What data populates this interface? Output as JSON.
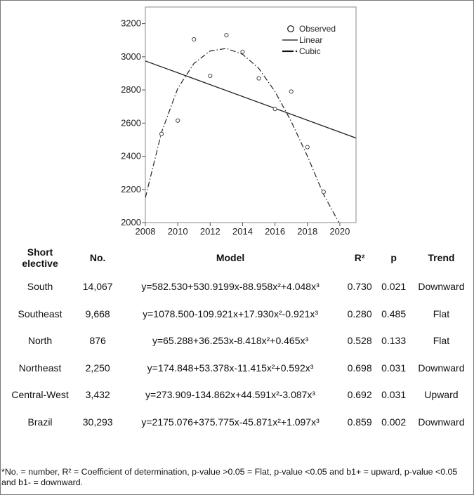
{
  "chart_data": {
    "type": "scatter",
    "title": "",
    "xlabel": "",
    "ylabel": "",
    "xlim": [
      2008,
      2021
    ],
    "ylim": [
      2000,
      3300
    ],
    "xticks": [
      2008,
      2010,
      2012,
      2014,
      2016,
      2018,
      2020
    ],
    "yticks": [
      2000,
      2200,
      2400,
      2600,
      2800,
      3000,
      3200
    ],
    "xtick_labels": [
      "2008",
      "2010",
      "2012",
      "2014",
      "2016",
      "2018",
      "2020"
    ],
    "ytick_labels": [
      "2000",
      "2200",
      "2400",
      "2600",
      "2800",
      "3000",
      "3200"
    ],
    "legend_position": "top-right",
    "grid": false,
    "series": [
      {
        "name": "Observed",
        "kind": "markers",
        "points": [
          [
            2009,
            2535
          ],
          [
            2010,
            2615
          ],
          [
            2011,
            3105
          ],
          [
            2012,
            2885
          ],
          [
            2013,
            3130
          ],
          [
            2014,
            3030
          ],
          [
            2015,
            2870
          ],
          [
            2016,
            2685
          ],
          [
            2017,
            2790
          ],
          [
            2018,
            2455
          ],
          [
            2019,
            2185
          ]
        ]
      },
      {
        "name": "Linear",
        "kind": "line",
        "points": [
          [
            2008,
            2975
          ],
          [
            2021,
            2510
          ]
        ]
      },
      {
        "name": "Cubic",
        "kind": "dashdot",
        "points": [
          [
            2008,
            2150
          ],
          [
            2009,
            2545
          ],
          [
            2010,
            2810
          ],
          [
            2011,
            2960
          ],
          [
            2012,
            3035
          ],
          [
            2013,
            3050
          ],
          [
            2014,
            3015
          ],
          [
            2015,
            2930
          ],
          [
            2016,
            2790
          ],
          [
            2017,
            2610
          ],
          [
            2018,
            2400
          ],
          [
            2019,
            2170
          ],
          [
            2020,
            1990
          ]
        ]
      }
    ]
  },
  "table": {
    "headers": {
      "region_line1": "Short",
      "region_line2": "elective",
      "no": "No.",
      "model": "Model",
      "r2": "R²",
      "p": "p",
      "trend": "Trend"
    },
    "rows": [
      {
        "region": "South",
        "no": "14,067",
        "model": "y=582.530+530.9199x-88.958x²+4.048x³",
        "r2": "0.730",
        "p": "0.021",
        "trend": "Downward"
      },
      {
        "region": "Southeast",
        "no": "9,668",
        "model": "y=1078.500-109.921x+17.930x²-0.921x³",
        "r2": "0.280",
        "p": "0.485",
        "trend": "Flat"
      },
      {
        "region": "North",
        "no": "876",
        "model": "y=65.288+36.253x-8.418x²+0.465x³",
        "r2": "0.528",
        "p": "0.133",
        "trend": "Flat"
      },
      {
        "region": "Northeast",
        "no": "2,250",
        "model": "y=174.848+53.378x-11.415x²+0.592x³",
        "r2": "0.698",
        "p": "0.031",
        "trend": "Downward"
      },
      {
        "region": "Central-West",
        "no": "3,432",
        "model": "y=273.909-134.862x+44.591x²-3.087x³",
        "r2": "0.692",
        "p": "0.031",
        "trend": "Upward"
      },
      {
        "region": "Brazil",
        "no": "30,293",
        "model": "y=2175.076+375.775x-45.871x²+1.097x³",
        "r2": "0.859",
        "p": "0.002",
        "trend": "Downward"
      }
    ],
    "footnote": "*No. = number, R² = Coefficient of determination, p-value >0.05 = Flat, p-value <0.05 and b1+ = upward, p-value <0.05 and b1- = downward."
  }
}
